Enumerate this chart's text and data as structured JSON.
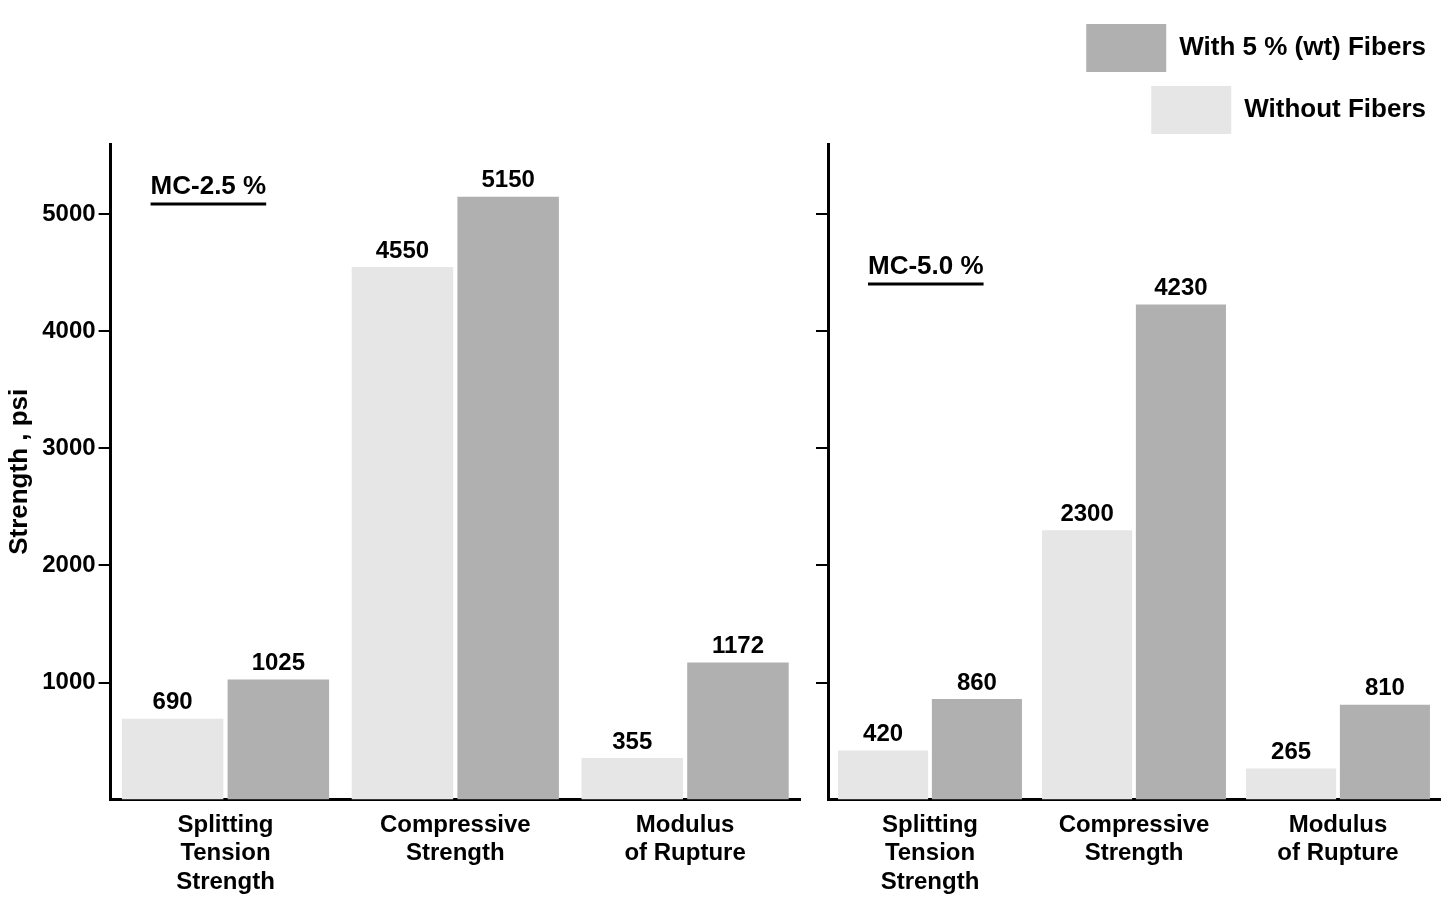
{
  "chart_data": [
    {
      "type": "bar",
      "categories": [
        "Splitting\nTension\nStrength",
        "Compressive\nStrength",
        "Modulus\nof Rupture"
      ],
      "series": [
        {
          "color": "#e6e6e6",
          "values": [
            690,
            4550,
            355
          ]
        },
        {
          "color": "#b0b0b0",
          "values": [
            1025,
            5150,
            1172
          ]
        }
      ],
      "ylim": [
        0,
        5600
      ],
      "yticks": [
        1000,
        2000,
        3000,
        4000,
        5000
      ],
      "ylabel": "Strength , psi",
      "annotations": [
        "MC-2.5 %"
      ],
      "data_labels": true,
      "legend": false
    },
    {
      "type": "bar",
      "categories": [
        "Splitting\nTension\nStrength",
        "Compressive\nStrength",
        "Modulus\nof Rupture"
      ],
      "series": [
        {
          "name": "Without Fibers",
          "color": "#e6e6e6",
          "values": [
            420,
            2300,
            265
          ]
        },
        {
          "name": "With 5 % (wt) Fibers",
          "color": "#b0b0b0",
          "values": [
            860,
            4230,
            810
          ]
        }
      ],
      "ylim": [
        0,
        5600
      ],
      "yticks": [
        1000,
        2000,
        3000,
        4000,
        5000
      ],
      "tick_labels": "x",
      "annotations": [
        "MC-5.0 %"
      ],
      "data_labels": true,
      "legend": "top right"
    }
  ]
}
